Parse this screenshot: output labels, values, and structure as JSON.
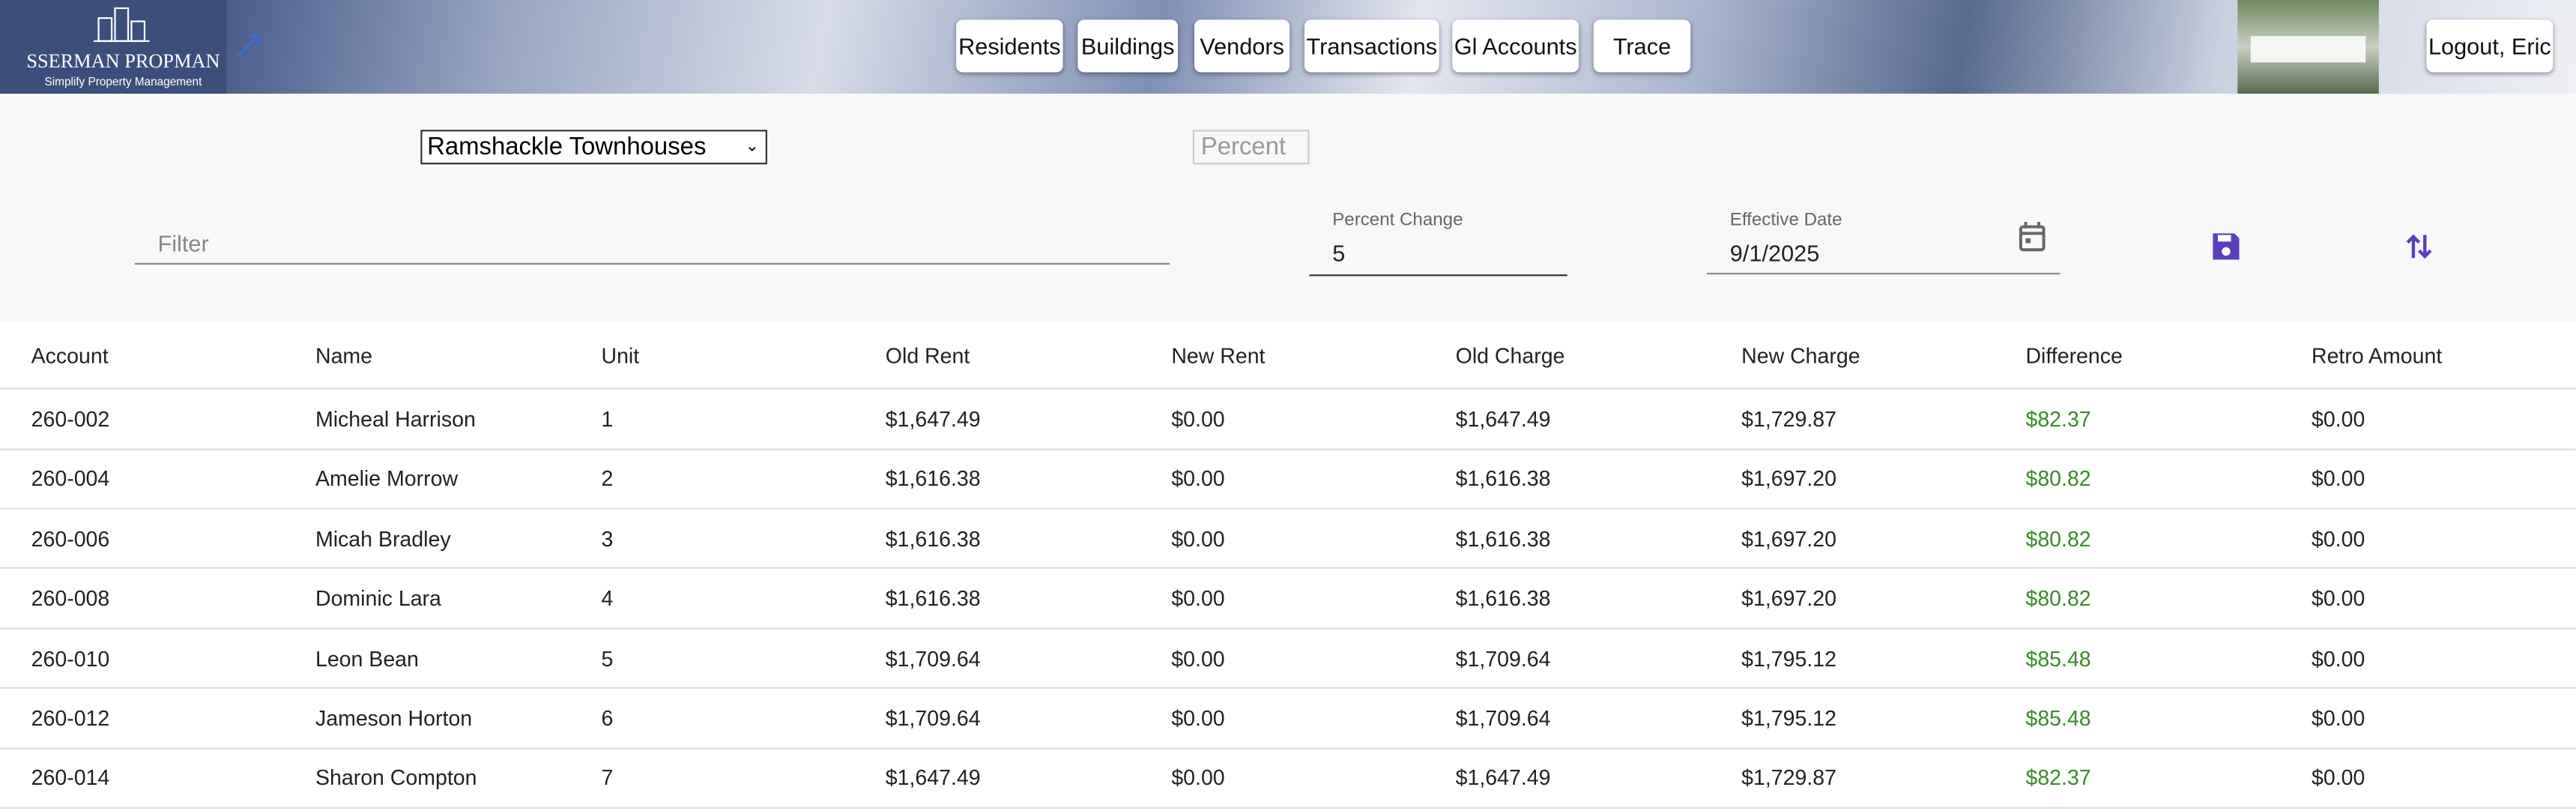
{
  "header": {
    "logo_title": "SSERMAN PROPMAN",
    "logo_subtitle": "Simplify Property Management",
    "nav": [
      "Residents",
      "Buildings",
      "Vendors",
      "Transactions",
      "Gl Accounts",
      "Trace"
    ],
    "logout": "Logout, Eric"
  },
  "controls": {
    "property_select": "Ramshackle Townhouses",
    "mode_select": "Percent",
    "filter_placeholder": "Filter",
    "percent_change": {
      "label": "Percent Change",
      "value": "5"
    },
    "effective_date": {
      "label": "Effective Date",
      "value": "9/1/2025"
    }
  },
  "table": {
    "columns": [
      "Account",
      "Name",
      "Unit",
      "Old Rent",
      "New Rent",
      "Old Charge",
      "New Charge",
      "Difference",
      "Retro Amount"
    ],
    "rows": [
      [
        "260-002",
        "Micheal Harrison",
        "1",
        "$1,647.49",
        "$0.00",
        "$1,647.49",
        "$1,729.87",
        "$82.37",
        "$0.00"
      ],
      [
        "260-004",
        "Amelie Morrow",
        "2",
        "$1,616.38",
        "$0.00",
        "$1,616.38",
        "$1,697.20",
        "$80.82",
        "$0.00"
      ],
      [
        "260-006",
        "Micah Bradley",
        "3",
        "$1,616.38",
        "$0.00",
        "$1,616.38",
        "$1,697.20",
        "$80.82",
        "$0.00"
      ],
      [
        "260-008",
        "Dominic Lara",
        "4",
        "$1,616.38",
        "$0.00",
        "$1,616.38",
        "$1,697.20",
        "$80.82",
        "$0.00"
      ],
      [
        "260-010",
        "Leon Bean",
        "5",
        "$1,709.64",
        "$0.00",
        "$1,709.64",
        "$1,795.12",
        "$85.48",
        "$0.00"
      ],
      [
        "260-012",
        "Jameson Horton",
        "6",
        "$1,709.64",
        "$0.00",
        "$1,709.64",
        "$1,795.12",
        "$85.48",
        "$0.00"
      ],
      [
        "260-014",
        "Sharon Compton",
        "7",
        "$1,647.49",
        "$0.00",
        "$1,647.49",
        "$1,729.87",
        "$82.37",
        "$0.00"
      ]
    ]
  }
}
